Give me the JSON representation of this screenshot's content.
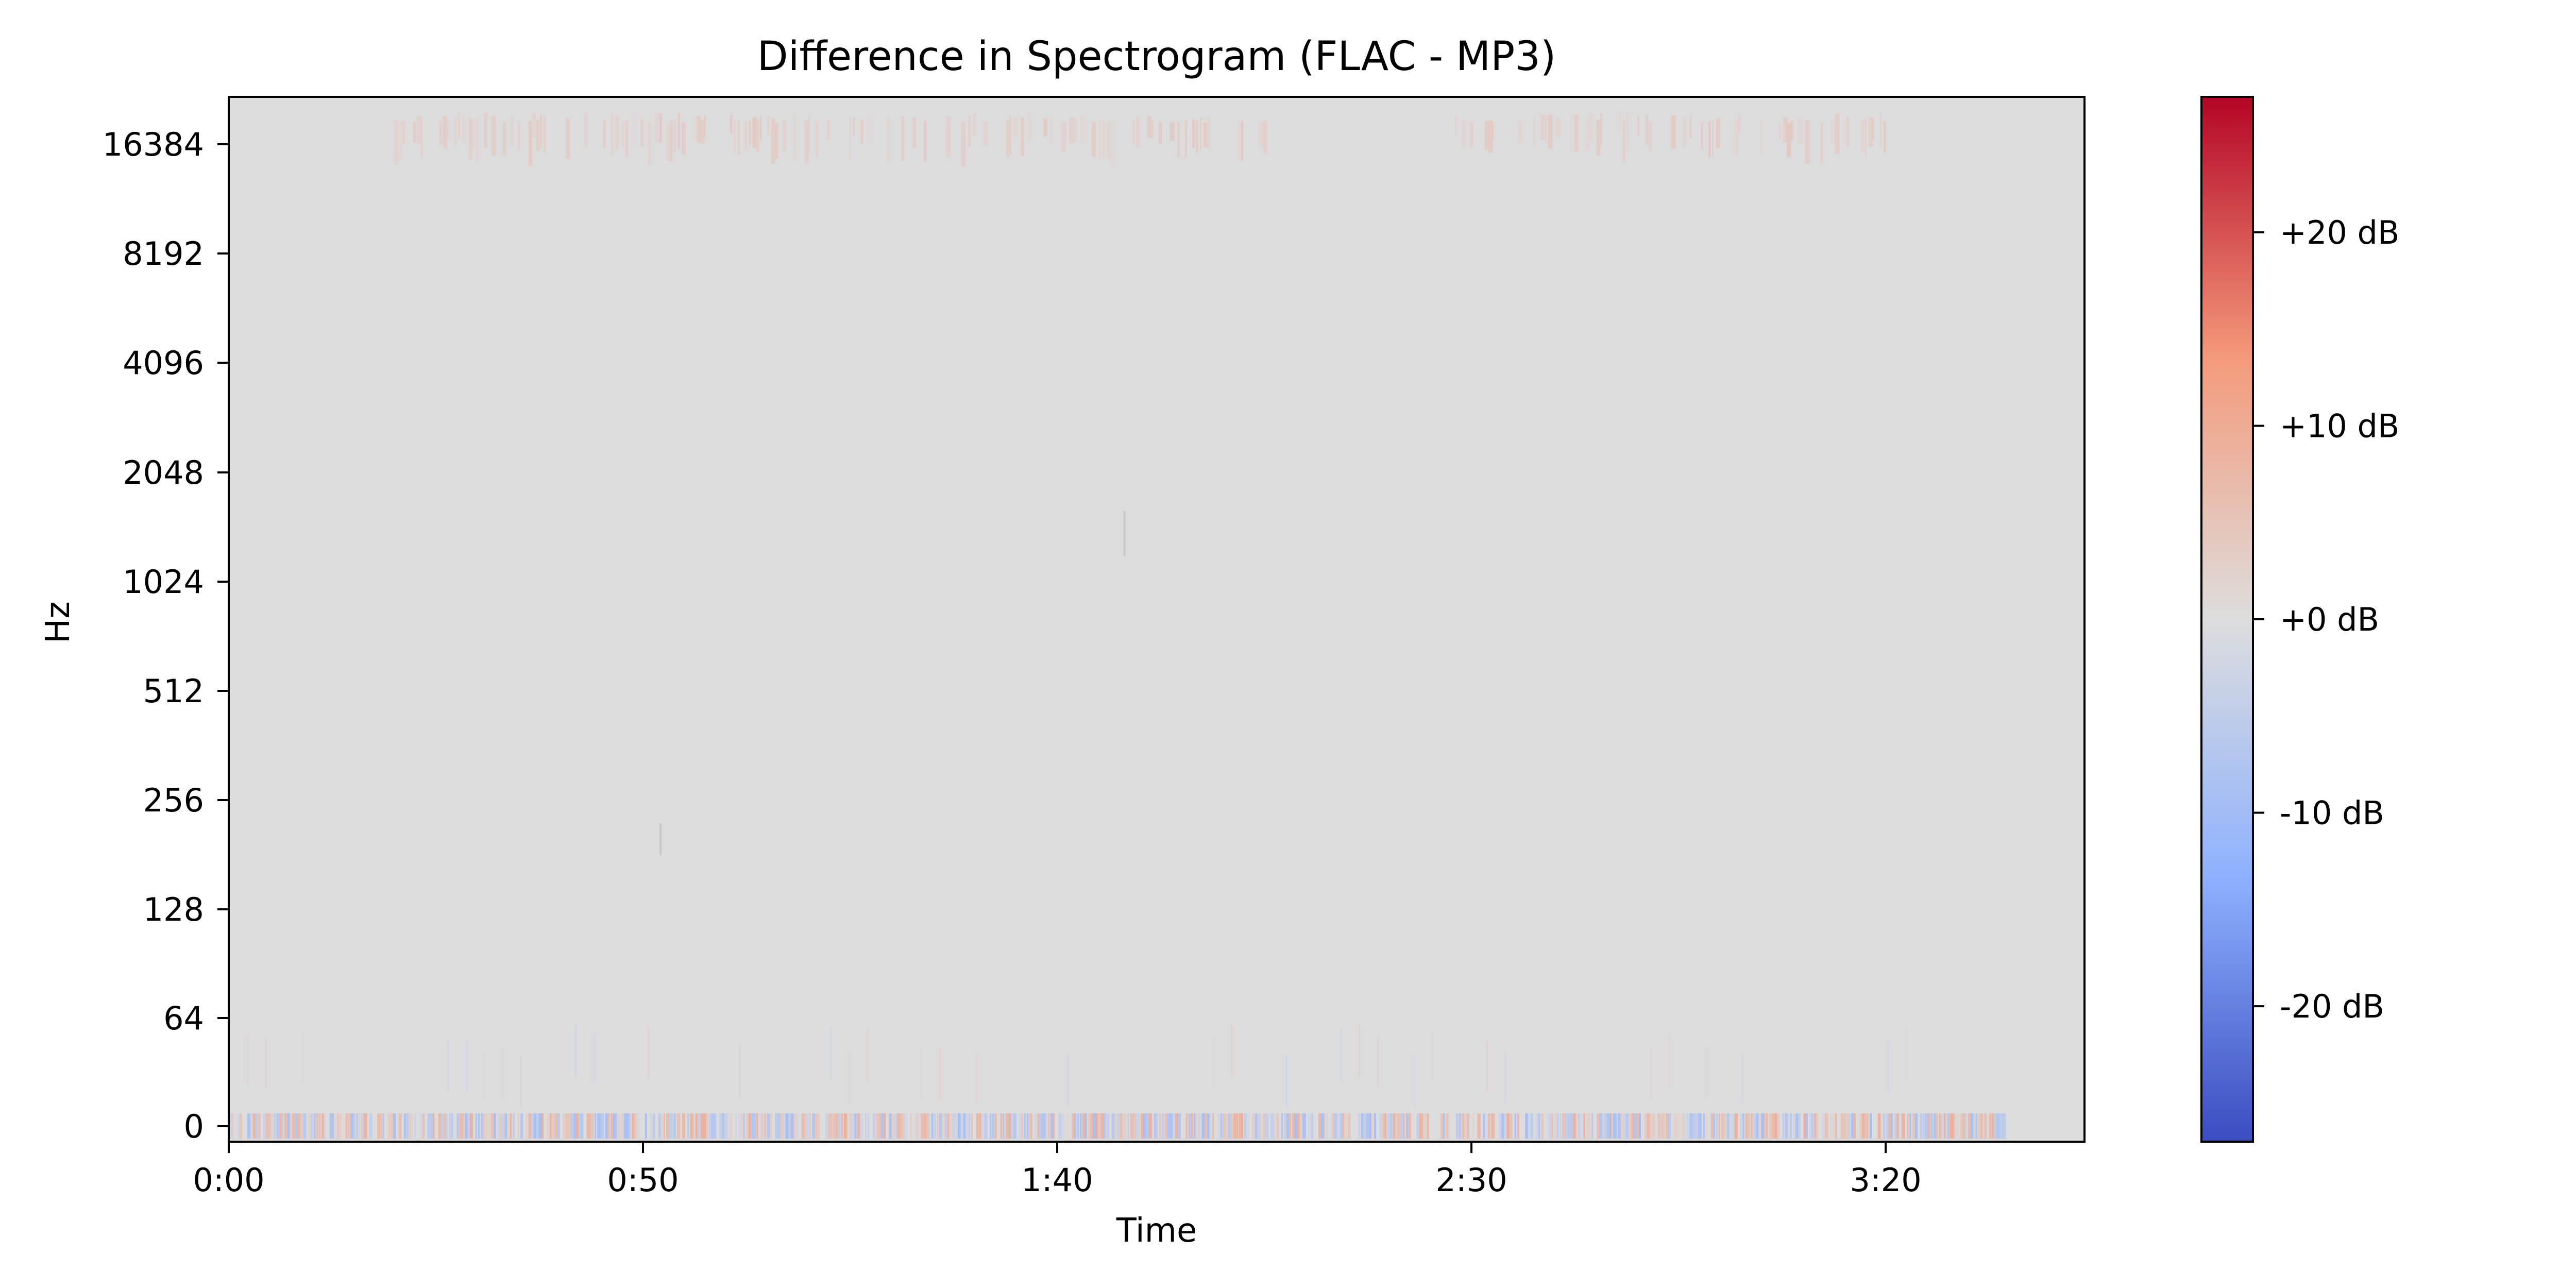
{
  "chart_data": {
    "type": "heatmap",
    "title": "Difference in Spectrogram (FLAC - MP3)",
    "xlabel": "Time",
    "ylabel": "Hz",
    "x_axis": {
      "unit": "seconds",
      "range": [
        0,
        224
      ],
      "ticks": [
        {
          "value": 0,
          "label": "0:00"
        },
        {
          "value": 50,
          "label": "0:50"
        },
        {
          "value": 100,
          "label": "1:40"
        },
        {
          "value": 150,
          "label": "2:30"
        },
        {
          "value": 200,
          "label": "3:20"
        }
      ]
    },
    "y_axis": {
      "scale": "log2 (symlog)",
      "range_hz": [
        0,
        22050
      ],
      "ticks": [
        {
          "value": 0,
          "label": "0"
        },
        {
          "value": 64,
          "label": "64"
        },
        {
          "value": 128,
          "label": "128"
        },
        {
          "value": 256,
          "label": "256"
        },
        {
          "value": 512,
          "label": "512"
        },
        {
          "value": 1024,
          "label": "1024"
        },
        {
          "value": 2048,
          "label": "2048"
        },
        {
          "value": 4096,
          "label": "4096"
        },
        {
          "value": 8192,
          "label": "8192"
        },
        {
          "value": 16384,
          "label": "16384"
        }
      ]
    },
    "colorbar": {
      "colormap": "coolwarm",
      "range_db": [
        -27,
        27
      ],
      "ticks": [
        {
          "value": 20,
          "label": "+20 dB"
        },
        {
          "value": 10,
          "label": "+10 dB"
        },
        {
          "value": 0,
          "label": "+0 dB"
        },
        {
          "value": -10,
          "label": "-10 dB"
        },
        {
          "value": -20,
          "label": "-20 dB"
        }
      ]
    },
    "observations": {
      "background_db": 0,
      "high_freq_positive_band": {
        "freq_hz": [
          15000,
          20000
        ],
        "approx_db": 5,
        "time_spans_s": [
          [
            20,
            125
          ],
          [
            148,
            200
          ]
        ]
      },
      "low_freq_noisy_band": {
        "freq_hz": [
          0,
          32
        ],
        "db_range": [
          -12,
          12
        ],
        "time_span_s": [
          0,
          215
        ]
      },
      "faint_vertical_marks": [
        {
          "time_s": 52,
          "freq_hz": [
            180,
            220
          ]
        },
        {
          "time_s": 108,
          "freq_hz": [
            1200,
            1600
          ]
        }
      ]
    },
    "grid": false,
    "legend": "none"
  }
}
